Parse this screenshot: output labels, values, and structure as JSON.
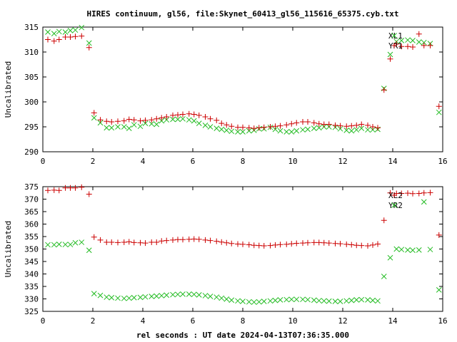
{
  "chart_data": {
    "type": "scatter",
    "title": "HIRES continuum, gl56, file:Skynet_60413_gl56_115616_65375.cyb.txt",
    "xlabel": "rel seconds : UT date 2024-04-13T07:36:35.000",
    "x": [
      0.2,
      0.45,
      0.65,
      0.9,
      1.1,
      1.3,
      1.55,
      1.85,
      2.05,
      2.3,
      2.55,
      2.75,
      3.0,
      3.25,
      3.45,
      3.65,
      3.9,
      4.1,
      4.35,
      4.55,
      4.75,
      4.95,
      5.2,
      5.4,
      5.6,
      5.85,
      6.05,
      6.25,
      6.5,
      6.7,
      6.95,
      7.15,
      7.35,
      7.55,
      7.8,
      8.0,
      8.25,
      8.45,
      8.65,
      8.85,
      9.1,
      9.3,
      9.5,
      9.75,
      9.95,
      10.15,
      10.4,
      10.6,
      10.85,
      11.05,
      11.25,
      11.45,
      11.7,
      11.9,
      12.15,
      12.35,
      12.55,
      12.75,
      13.0,
      13.2,
      13.4,
      13.65,
      13.9,
      14.15,
      14.35,
      14.6,
      14.8,
      15.05,
      15.25,
      15.5,
      15.85
    ],
    "charts": [
      {
        "ylabel": "Uncalibrated",
        "xlim": [
          0,
          16
        ],
        "ylim": [
          290,
          315
        ],
        "xticks": [
          0,
          2,
          4,
          6,
          8,
          10,
          12,
          14,
          16
        ],
        "yticks": [
          290,
          295,
          300,
          305,
          310,
          315
        ],
        "series": [
          {
            "name": "XL1",
            "marker": "x",
            "color": "#22bb22",
            "values": [
              314.0,
              313.7,
              314.1,
              314.0,
              314.3,
              314.4,
              314.9,
              311.8,
              296.8,
              295.8,
              294.8,
              294.8,
              295.0,
              295.0,
              294.7,
              295.4,
              295.1,
              295.7,
              295.6,
              295.5,
              296.2,
              296.4,
              296.5,
              296.5,
              296.6,
              296.4,
              296.2,
              295.7,
              295.3,
              295.0,
              294.7,
              294.5,
              294.3,
              294.1,
              294.0,
              294.0,
              294.2,
              294.3,
              294.6,
              294.6,
              294.9,
              294.5,
              294.2,
              294.0,
              294.0,
              294.2,
              294.4,
              294.5,
              294.7,
              294.8,
              295.0,
              295.0,
              294.9,
              294.6,
              294.3,
              294.2,
              294.4,
              294.7,
              294.4,
              294.4,
              294.5,
              302.7,
              309.5,
              312.1,
              312.3,
              312.4,
              312.3,
              312.0,
              311.9,
              311.7,
              297.9
            ]
          },
          {
            "name": "YR1",
            "marker": "+",
            "color": "#cc0000",
            "values": [
              312.5,
              312.2,
              312.5,
              313.0,
              313.0,
              313.1,
              313.2,
              310.9,
              297.8,
              296.4,
              296.1,
              296.0,
              296.1,
              296.2,
              296.5,
              296.4,
              296.2,
              296.3,
              296.4,
              296.6,
              296.8,
              297.0,
              297.3,
              297.4,
              297.5,
              297.6,
              297.5,
              297.3,
              297.0,
              296.6,
              296.3,
              295.7,
              295.4,
              295.1,
              294.9,
              294.9,
              294.8,
              294.7,
              294.8,
              294.9,
              295.0,
              295.1,
              295.2,
              295.4,
              295.6,
              295.8,
              296.0,
              296.0,
              295.8,
              295.6,
              295.5,
              295.5,
              295.3,
              295.2,
              295.1,
              295.2,
              295.3,
              295.5,
              295.3,
              295.0,
              294.8,
              302.4,
              308.6,
              311.6,
              311.1,
              311.1,
              311.0,
              313.6,
              311.3,
              311.3,
              299.1
            ]
          }
        ]
      },
      {
        "ylabel": "Uncalibrated",
        "xlim": [
          0,
          16
        ],
        "ylim": [
          325,
          375
        ],
        "xticks": [
          0,
          2,
          4,
          6,
          8,
          10,
          12,
          14,
          16
        ],
        "yticks": [
          325,
          330,
          335,
          340,
          345,
          350,
          355,
          360,
          365,
          370,
          375
        ],
        "series": [
          {
            "name": "XL2",
            "marker": "+",
            "color": "#cc0000",
            "values": [
              373.5,
              373.6,
              373.5,
              374.5,
              374.5,
              374.5,
              374.8,
              372.0,
              354.8,
              353.6,
              352.7,
              352.7,
              352.6,
              352.7,
              352.9,
              352.6,
              352.5,
              352.4,
              352.7,
              352.7,
              353.2,
              353.4,
              353.6,
              353.8,
              353.8,
              353.9,
              354.0,
              353.9,
              353.6,
              353.4,
              353.1,
              352.8,
              352.5,
              352.2,
              352.0,
              351.9,
              351.7,
              351.5,
              351.4,
              351.3,
              351.4,
              351.6,
              351.8,
              351.9,
              352.1,
              352.3,
              352.4,
              352.5,
              352.6,
              352.6,
              352.5,
              352.4,
              352.2,
              352.1,
              351.9,
              351.7,
              351.5,
              351.4,
              351.3,
              351.6,
              352.0,
              361.5,
              372.5,
              372.3,
              372.3,
              372.4,
              372.2,
              372.3,
              372.5,
              372.6,
              355.6
            ]
          },
          {
            "name": "YR2",
            "marker": "x",
            "color": "#22bb22",
            "values": [
              351.7,
              351.7,
              351.9,
              351.8,
              351.8,
              352.5,
              352.7,
              349.5,
              332.1,
              331.4,
              330.7,
              330.5,
              330.3,
              330.2,
              330.3,
              330.5,
              330.6,
              330.8,
              331.0,
              331.1,
              331.3,
              331.5,
              331.7,
              331.8,
              331.9,
              331.9,
              331.8,
              331.6,
              331.3,
              331.0,
              330.7,
              330.3,
              329.9,
              329.5,
              329.2,
              329.0,
              328.8,
              328.7,
              328.8,
              329.0,
              329.2,
              329.4,
              329.6,
              329.7,
              329.8,
              329.8,
              329.8,
              329.7,
              329.5,
              329.3,
              329.2,
              329.1,
              329.0,
              329.0,
              329.2,
              329.4,
              329.6,
              329.7,
              329.6,
              329.4,
              329.2,
              339.0,
              346.5,
              350.0,
              349.8,
              349.6,
              349.5,
              349.6,
              368.9,
              349.8,
              333.6
            ]
          }
        ]
      }
    ]
  }
}
